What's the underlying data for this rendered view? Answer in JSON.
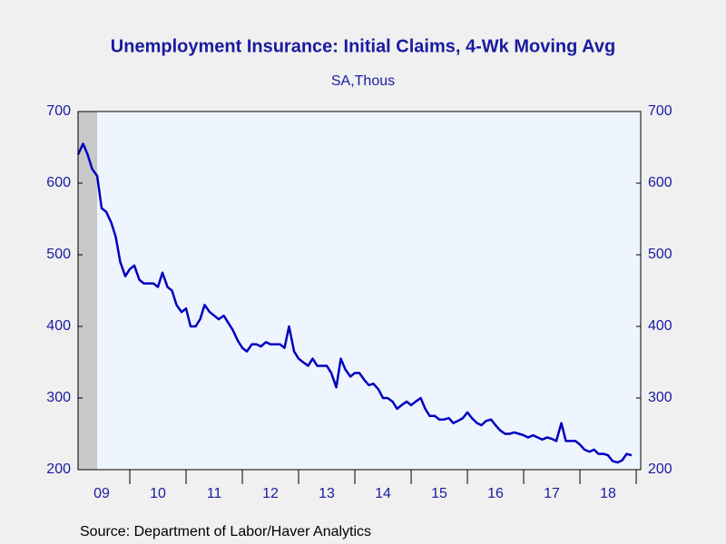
{
  "chart_data": {
    "type": "line",
    "title": "Unemployment Insurance: Initial Claims, 4-Wk Moving Avg",
    "subtitle": "SA,Thous",
    "source": "Source:  Department of Labor/Haver Analytics",
    "xlim": [
      2009.08,
      2019.08
    ],
    "ylim": [
      200,
      700
    ],
    "yticks": [
      200,
      300,
      400,
      500,
      600,
      700
    ],
    "xticks": [
      {
        "value": 2009.5,
        "label": "09"
      },
      {
        "value": 2010.5,
        "label": "10"
      },
      {
        "value": 2011.5,
        "label": "11"
      },
      {
        "value": 2012.5,
        "label": "12"
      },
      {
        "value": 2013.5,
        "label": "13"
      },
      {
        "value": 2014.5,
        "label": "14"
      },
      {
        "value": 2015.5,
        "label": "15"
      },
      {
        "value": 2016.5,
        "label": "16"
      },
      {
        "value": 2017.5,
        "label": "17"
      },
      {
        "value": 2018.5,
        "label": "18"
      }
    ],
    "xtick_marks": [
      2010,
      2011,
      2012,
      2013,
      2014,
      2015,
      2016,
      2017,
      2018,
      2019
    ],
    "shade": [
      2009.08,
      2009.42
    ],
    "shade_color": "#c8c8c8",
    "plot_background": "#eef5ff",
    "series": [
      {
        "color": "#0000c0",
        "x": [
          2009.08,
          2009.17,
          2009.25,
          2009.33,
          2009.42,
          2009.5,
          2009.58,
          2009.67,
          2009.75,
          2009.83,
          2009.92,
          2010.0,
          2010.08,
          2010.17,
          2010.25,
          2010.33,
          2010.42,
          2010.5,
          2010.58,
          2010.67,
          2010.75,
          2010.83,
          2010.92,
          2011.0,
          2011.08,
          2011.17,
          2011.25,
          2011.33,
          2011.42,
          2011.5,
          2011.58,
          2011.67,
          2011.75,
          2011.83,
          2011.92,
          2012.0,
          2012.08,
          2012.17,
          2012.25,
          2012.33,
          2012.42,
          2012.5,
          2012.58,
          2012.67,
          2012.75,
          2012.83,
          2012.92,
          2013.0,
          2013.08,
          2013.17,
          2013.25,
          2013.33,
          2013.42,
          2013.5,
          2013.58,
          2013.67,
          2013.75,
          2013.83,
          2013.92,
          2014.0,
          2014.08,
          2014.17,
          2014.25,
          2014.33,
          2014.42,
          2014.5,
          2014.58,
          2014.67,
          2014.75,
          2014.83,
          2014.92,
          2015.0,
          2015.08,
          2015.17,
          2015.25,
          2015.33,
          2015.42,
          2015.5,
          2015.58,
          2015.67,
          2015.75,
          2015.83,
          2015.92,
          2016.0,
          2016.08,
          2016.17,
          2016.25,
          2016.33,
          2016.42,
          2016.5,
          2016.58,
          2016.67,
          2016.75,
          2016.83,
          2016.92,
          2017.0,
          2017.08,
          2017.17,
          2017.25,
          2017.33,
          2017.42,
          2017.5,
          2017.58,
          2017.67,
          2017.75,
          2017.83,
          2017.92,
          2018.0,
          2018.08,
          2018.17,
          2018.25,
          2018.33,
          2018.42,
          2018.5,
          2018.58,
          2018.67,
          2018.75,
          2018.83,
          2018.92
        ],
        "values": [
          640,
          655,
          640,
          620,
          610,
          565,
          560,
          545,
          525,
          490,
          470,
          480,
          485,
          465,
          460,
          460,
          460,
          455,
          475,
          455,
          450,
          430,
          420,
          425,
          400,
          400,
          410,
          430,
          420,
          415,
          410,
          415,
          405,
          395,
          380,
          370,
          365,
          375,
          375,
          372,
          378,
          375,
          375,
          375,
          370,
          400,
          365,
          355,
          350,
          345,
          355,
          345,
          345,
          345,
          335,
          315,
          355,
          340,
          330,
          335,
          335,
          325,
          318,
          320,
          312,
          300,
          300,
          295,
          285,
          290,
          295,
          290,
          295,
          300,
          285,
          275,
          275,
          270,
          270,
          272,
          265,
          268,
          272,
          280,
          272,
          265,
          262,
          268,
          270,
          262,
          255,
          250,
          250,
          252,
          250,
          248,
          245,
          248,
          245,
          242,
          245,
          243,
          240,
          265,
          240,
          240,
          240,
          235,
          228,
          225,
          228,
          222,
          222,
          220,
          212,
          210,
          213,
          222,
          220
        ]
      }
    ]
  }
}
